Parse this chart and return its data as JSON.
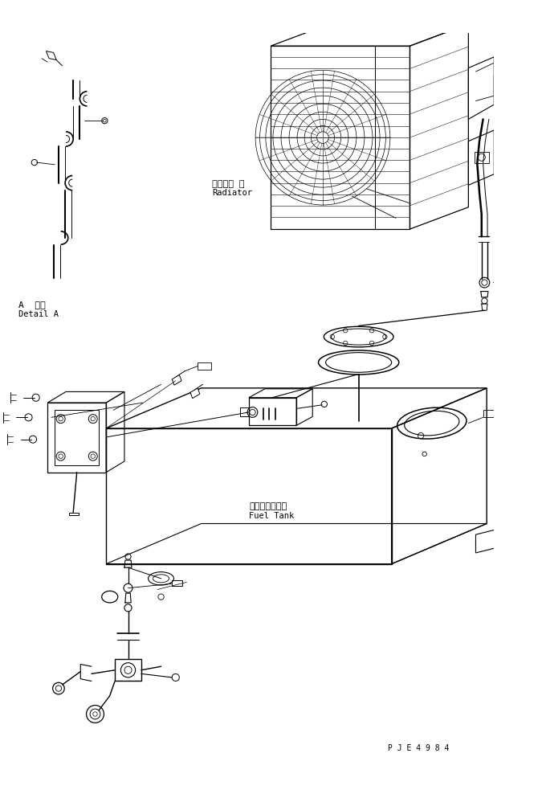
{
  "bg_color": "#ffffff",
  "line_color": "#000000",
  "title_text": "P J E 4 9 8 4",
  "label_radiator_jp": "ラジエー タ",
  "label_radiator_en": "Radiator",
  "label_detail_jp": "A  詳細",
  "label_detail_en": "Detail A",
  "label_fueltank_jp": "フェエルタンク",
  "label_fueltank_en": "Fuel Tank",
  "label_A": "A",
  "fig_width": 6.75,
  "fig_height": 9.79,
  "dpi": 100
}
